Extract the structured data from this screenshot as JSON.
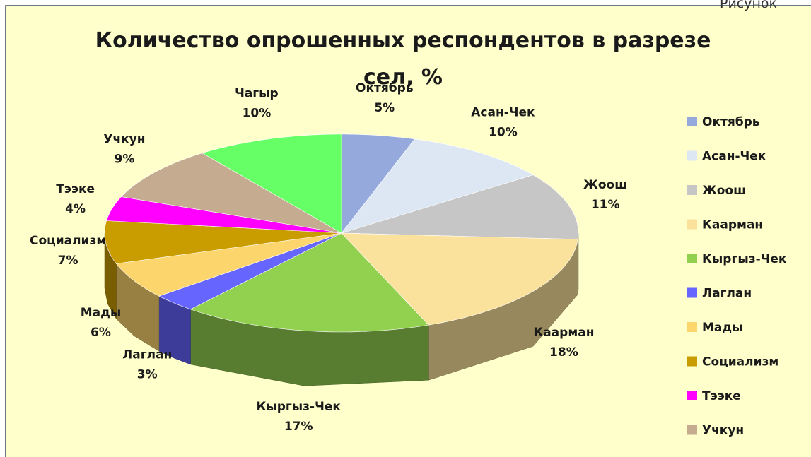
{
  "note": "Рисунок",
  "chart_data": {
    "type": "pie",
    "title": "Количество опрошенных респондентов в разрезе сел, %",
    "categories": [
      "Октябрь",
      "Асан-Чек",
      "Жоош",
      "Каарман",
      "Кыргыз-Чек",
      "Лаглан",
      "Мады",
      "Социализм",
      "Тээке",
      "Учкун",
      "Чагыр"
    ],
    "values": [
      5,
      10,
      11,
      18,
      17,
      3,
      6,
      7,
      4,
      9,
      10
    ],
    "value_labels": [
      "5%",
      "10%",
      "11%",
      "18%",
      "17%",
      "3%",
      "6%",
      "7%",
      "4%",
      "9%",
      "10%"
    ],
    "colors": [
      "#95a9dc",
      "#dde7f3",
      "#c6c6c6",
      "#fbe29c",
      "#92d050",
      "#6666ff",
      "#fcd56c",
      "#c99c00",
      "#ff00ff",
      "#c5ac90",
      "#66ff66"
    ],
    "legend": "right"
  }
}
